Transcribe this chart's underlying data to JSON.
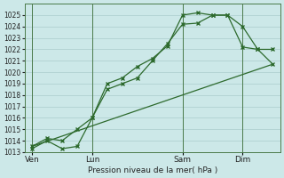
{
  "xlabel": "Pression niveau de la mer( hPa )",
  "background_color": "#cce8e8",
  "grid_color": "#aacccc",
  "line_color": "#2d6a2d",
  "ylim": [
    1013,
    1026
  ],
  "yticks": [
    1013,
    1014,
    1015,
    1016,
    1017,
    1018,
    1019,
    1020,
    1021,
    1022,
    1023,
    1024,
    1025
  ],
  "xtick_labels": [
    "Ven",
    "Lun",
    "Sam",
    "Dim"
  ],
  "xtick_positions": [
    0,
    4,
    10,
    14
  ],
  "xmax": 16,
  "line1_x": [
    0,
    1,
    2,
    3,
    4,
    5,
    6,
    7,
    8,
    9,
    10,
    11,
    12,
    13,
    14,
    15,
    16
  ],
  "line1_y": [
    1013.5,
    1014.2,
    1014.0,
    1015.0,
    1016.0,
    1018.5,
    1019.0,
    1019.5,
    1021.0,
    1022.5,
    1024.2,
    1024.3,
    1025.0,
    1025.0,
    1024.0,
    1022.0,
    1020.7
  ],
  "line2_x": [
    0,
    1,
    2,
    3,
    4,
    5,
    6,
    7,
    8,
    9,
    10,
    11,
    12,
    13,
    14,
    15,
    16
  ],
  "line2_y": [
    1013.3,
    1014.0,
    1013.3,
    1013.5,
    1016.0,
    1019.0,
    1019.5,
    1020.5,
    1021.2,
    1022.3,
    1025.0,
    1025.2,
    1025.0,
    1025.0,
    1022.2,
    1022.0,
    1022.0
  ],
  "line3_x": [
    0,
    16
  ],
  "line3_y": [
    1013.5,
    1020.7
  ],
  "figsize": [
    3.2,
    2.0
  ],
  "dpi": 100
}
